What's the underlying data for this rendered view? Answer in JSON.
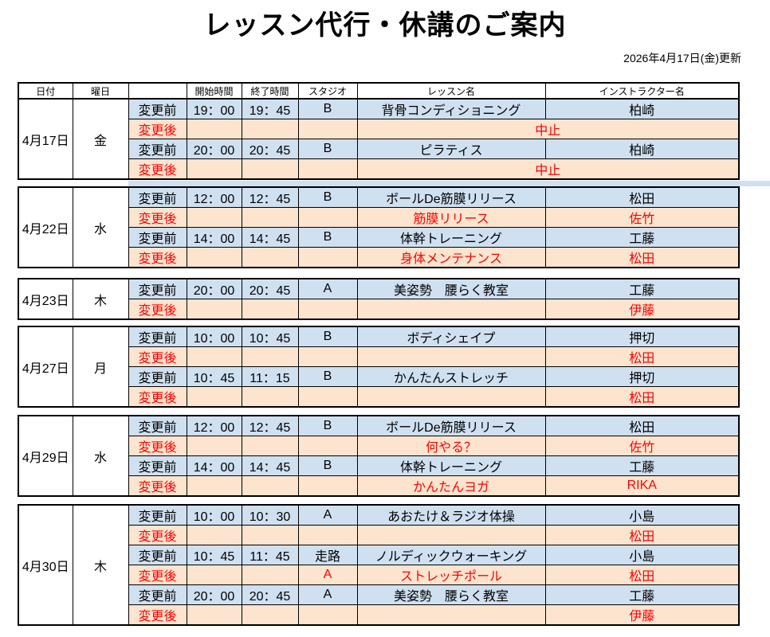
{
  "title": "レッスン代行・休講のご案内",
  "updated": "2026年4月17日(金)更新",
  "header": {
    "date": "日付",
    "day": "曜日",
    "blank": "",
    "start": "開始時間",
    "end": "終了時間",
    "studio": "スタジオ",
    "lesson": "レッスン名",
    "instructor": "インストラクター名"
  },
  "labels": {
    "before": "変更前",
    "after": "変更後"
  },
  "colors": {
    "before_row_bg": "#CFE0F1",
    "after_row_bg": "#FCE4CE",
    "after_text": "#FF0000",
    "border": "#000000"
  },
  "blocks": [
    {
      "date": "4月17日",
      "day": "金",
      "rows": [
        {
          "type": "before",
          "start": "19：00",
          "end": "19：45",
          "studio": "B",
          "lesson": "背骨コンディショニング",
          "instructor": "柏崎"
        },
        {
          "type": "after",
          "start": "",
          "end": "",
          "studio": "",
          "merged": "中止"
        },
        {
          "type": "before",
          "start": "20：00",
          "end": "20：45",
          "studio": "B",
          "lesson": "ピラティス",
          "instructor": "柏崎"
        },
        {
          "type": "after",
          "start": "",
          "end": "",
          "studio": "",
          "merged": "中止"
        }
      ]
    },
    {
      "date": "4月22日",
      "day": "水",
      "rows": [
        {
          "type": "before",
          "start": "12：00",
          "end": "12：45",
          "studio": "B",
          "lesson": "ボールDe筋膜リリース",
          "instructor": "松田"
        },
        {
          "type": "after",
          "start": "",
          "end": "",
          "studio": "",
          "lesson": "筋膜リリース",
          "instructor": "佐竹"
        },
        {
          "type": "before",
          "start": "14：00",
          "end": "14：45",
          "studio": "B",
          "lesson": "体幹トレーニング",
          "instructor": "工藤"
        },
        {
          "type": "after",
          "start": "",
          "end": "",
          "studio": "",
          "lesson": "身体メンテナンス",
          "instructor": "松田"
        }
      ]
    },
    {
      "date": "4月23日",
      "day": "木",
      "rows": [
        {
          "type": "before",
          "start": "20：00",
          "end": "20：45",
          "studio": "A",
          "lesson": "美姿勢　腰らく教室",
          "instructor": "工藤"
        },
        {
          "type": "after",
          "start": "",
          "end": "",
          "studio": "",
          "lesson": "",
          "instructor": "伊藤"
        }
      ]
    },
    {
      "date": "4月27日",
      "day": "月",
      "rows": [
        {
          "type": "before",
          "start": "10：00",
          "end": "10：45",
          "studio": "B",
          "lesson": "ボディシェイプ",
          "instructor": "押切"
        },
        {
          "type": "after",
          "start": "",
          "end": "",
          "studio": "",
          "lesson": "",
          "instructor": "松田"
        },
        {
          "type": "before",
          "start": "10：45",
          "end": "11：15",
          "studio": "B",
          "lesson": "かんたんストレッチ",
          "instructor": "押切"
        },
        {
          "type": "after",
          "start": "",
          "end": "",
          "studio": "",
          "lesson": "",
          "instructor": "松田"
        }
      ]
    },
    {
      "date": "4月29日",
      "day": "水",
      "rows": [
        {
          "type": "before",
          "start": "12：00",
          "end": "12：45",
          "studio": "B",
          "lesson": "ボールDe筋膜リリース",
          "instructor": "松田"
        },
        {
          "type": "after",
          "start": "",
          "end": "",
          "studio": "",
          "lesson": "何やる？",
          "instructor": "佐竹"
        },
        {
          "type": "before",
          "start": "14：00",
          "end": "14：45",
          "studio": "B",
          "lesson": "体幹トレーニング",
          "instructor": "工藤"
        },
        {
          "type": "after",
          "start": "",
          "end": "",
          "studio": "",
          "lesson": "かんたんヨガ",
          "instructor": "RIKA"
        }
      ]
    },
    {
      "date": "4月30日",
      "day": "木",
      "rows": [
        {
          "type": "before",
          "start": "10：00",
          "end": "10：30",
          "studio": "A",
          "lesson": "あおたけ＆ラジオ体操",
          "instructor": "小島"
        },
        {
          "type": "after",
          "start": "",
          "end": "",
          "studio": "",
          "lesson": "",
          "instructor": "松田"
        },
        {
          "type": "before",
          "start": "10：45",
          "end": "11：45",
          "studio": "走路",
          "lesson": "ノルディックウォーキング",
          "instructor": "小島"
        },
        {
          "type": "after",
          "start": "",
          "end": "",
          "studio": "A",
          "lesson": "ストレッチポール",
          "instructor": "松田"
        },
        {
          "type": "before",
          "start": "20：00",
          "end": "20：45",
          "studio": "A",
          "lesson": "美姿勢　腰らく教室",
          "instructor": "工藤"
        },
        {
          "type": "after",
          "start": "",
          "end": "",
          "studio": "",
          "lesson": "",
          "instructor": "伊藤"
        }
      ]
    }
  ]
}
